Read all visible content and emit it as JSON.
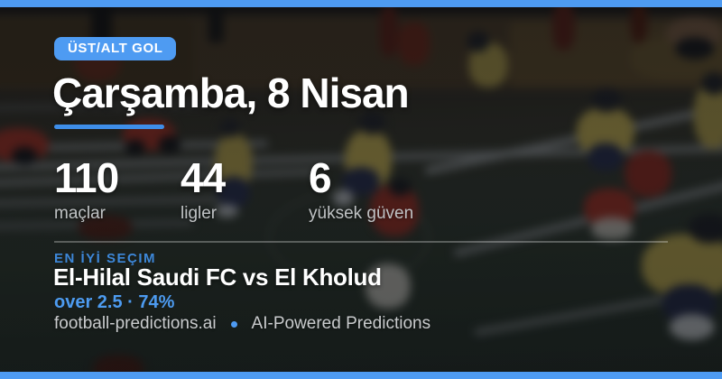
{
  "colors": {
    "accent_blue": "#4E9BF2",
    "underline_blue": "#3E8EE9",
    "eyebrow_blue": "#3D87D8",
    "pick_blue": "#4D9BF0",
    "text_white": "#FFFFFF",
    "text_muted": "#C9CBCD"
  },
  "badge": {
    "label": "ÜST/ALT GOL"
  },
  "header": {
    "title": "Çarşamba, 8 Nisan"
  },
  "stats": [
    {
      "value": "110",
      "label": "maçlar"
    },
    {
      "value": "44",
      "label": "ligler"
    },
    {
      "value": "6",
      "label": "yüksek güven"
    }
  ],
  "best_pick": {
    "eyebrow": "EN İYİ SEÇIM",
    "match": "El-Hilal Saudi FC vs El Kholud",
    "pick": "over 2.5 · 74%"
  },
  "footer": {
    "site": "football-predictions.ai",
    "tagline": "AI-Powered Predictions"
  }
}
